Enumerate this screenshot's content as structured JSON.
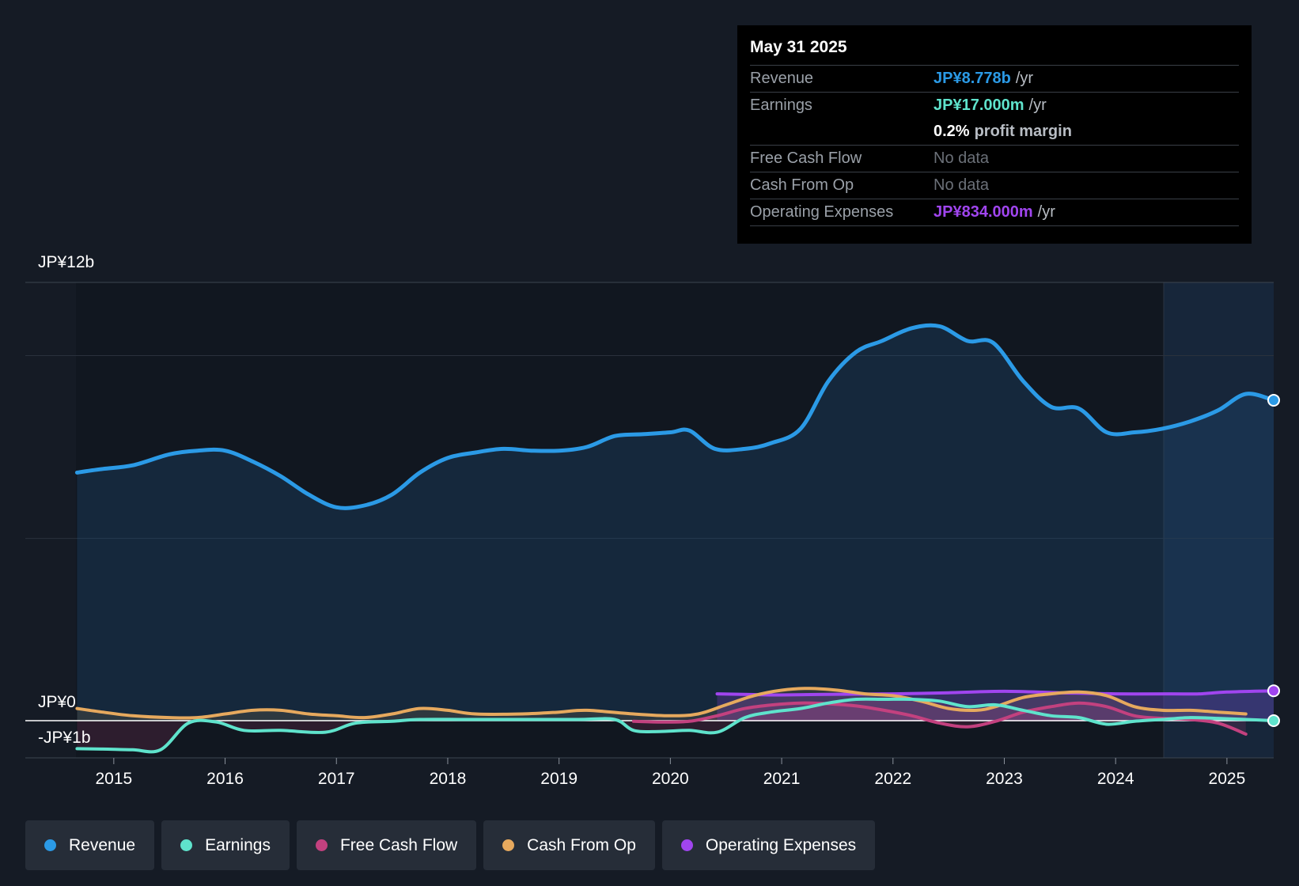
{
  "tooltip": {
    "date": "May 31 2025",
    "rows": {
      "revenue": {
        "label": "Revenue",
        "value": "JP¥8.778b",
        "unit": "/yr"
      },
      "earnings": {
        "label": "Earnings",
        "value": "JP¥17.000m",
        "unit": "/yr"
      },
      "margin": {
        "value": "0.2%",
        "unit": "profit margin"
      },
      "fcf": {
        "label": "Free Cash Flow",
        "value": "No data"
      },
      "cfo": {
        "label": "Cash From Op",
        "value": "No data"
      },
      "opex": {
        "label": "Operating Expenses",
        "value": "JP¥834.000m",
        "unit": "/yr"
      }
    }
  },
  "colors": {
    "revenue": "#2b9ae6",
    "earnings": "#5fe3cc",
    "fcf": "#c3417f",
    "cfo": "#e6a95e",
    "opex": "#a045ef"
  },
  "legend": [
    {
      "key": "revenue",
      "label": "Revenue"
    },
    {
      "key": "earnings",
      "label": "Earnings"
    },
    {
      "key": "fcf",
      "label": "Free Cash Flow"
    },
    {
      "key": "cfo",
      "label": "Cash From Op"
    },
    {
      "key": "opex",
      "label": "Operating Expenses"
    }
  ],
  "chart_data": {
    "type": "area",
    "unit": "JP¥ billions",
    "ylim": [
      -1,
      12
    ],
    "y_axis_labels": {
      "top": "JP¥12b",
      "zero": "JP¥0",
      "bottom": "-JP¥1b"
    },
    "x_range": [
      2014.66,
      2025.42
    ],
    "x_ticks": [
      "2015",
      "2016",
      "2017",
      "2018",
      "2019",
      "2020",
      "2021",
      "2022",
      "2023",
      "2024",
      "2025"
    ],
    "forecast_start": 2024.42,
    "series": [
      {
        "key": "revenue",
        "name": "Revenue",
        "points": [
          [
            2014.67,
            6.8
          ],
          [
            2014.9,
            6.9
          ],
          [
            2015.17,
            7.0
          ],
          [
            2015.5,
            7.3
          ],
          [
            2015.75,
            7.4
          ],
          [
            2016.0,
            7.4
          ],
          [
            2016.25,
            7.1
          ],
          [
            2016.5,
            6.7
          ],
          [
            2016.75,
            6.2
          ],
          [
            2017.0,
            5.85
          ],
          [
            2017.25,
            5.9
          ],
          [
            2017.5,
            6.2
          ],
          [
            2017.75,
            6.8
          ],
          [
            2018.0,
            7.2
          ],
          [
            2018.25,
            7.35
          ],
          [
            2018.5,
            7.45
          ],
          [
            2018.75,
            7.4
          ],
          [
            2019.0,
            7.4
          ],
          [
            2019.25,
            7.5
          ],
          [
            2019.5,
            7.8
          ],
          [
            2019.75,
            7.85
          ],
          [
            2020.0,
            7.9
          ],
          [
            2020.17,
            7.95
          ],
          [
            2020.4,
            7.45
          ],
          [
            2020.67,
            7.45
          ],
          [
            2020.9,
            7.6
          ],
          [
            2021.17,
            8.0
          ],
          [
            2021.42,
            9.3
          ],
          [
            2021.67,
            10.1
          ],
          [
            2021.9,
            10.4
          ],
          [
            2022.17,
            10.75
          ],
          [
            2022.42,
            10.8
          ],
          [
            2022.67,
            10.4
          ],
          [
            2022.9,
            10.35
          ],
          [
            2023.17,
            9.3
          ],
          [
            2023.42,
            8.6
          ],
          [
            2023.67,
            8.55
          ],
          [
            2023.92,
            7.9
          ],
          [
            2024.17,
            7.9
          ],
          [
            2024.42,
            8.0
          ],
          [
            2024.67,
            8.2
          ],
          [
            2024.92,
            8.5
          ],
          [
            2025.17,
            8.95
          ],
          [
            2025.42,
            8.778
          ]
        ]
      },
      {
        "key": "earnings",
        "name": "Earnings",
        "points": [
          [
            2014.67,
            -0.75
          ],
          [
            2014.9,
            -0.76
          ],
          [
            2015.17,
            -0.78
          ],
          [
            2015.42,
            -0.78
          ],
          [
            2015.67,
            -0.05
          ],
          [
            2015.92,
            -0.02
          ],
          [
            2016.17,
            -0.25
          ],
          [
            2016.5,
            -0.25
          ],
          [
            2016.9,
            -0.3
          ],
          [
            2017.17,
            -0.05
          ],
          [
            2017.5,
            0.0
          ],
          [
            2017.75,
            0.05
          ],
          [
            2018.17,
            0.05
          ],
          [
            2018.67,
            0.05
          ],
          [
            2019.17,
            0.05
          ],
          [
            2019.5,
            0.05
          ],
          [
            2019.67,
            -0.25
          ],
          [
            2019.9,
            -0.28
          ],
          [
            2020.17,
            -0.25
          ],
          [
            2020.42,
            -0.3
          ],
          [
            2020.67,
            0.1
          ],
          [
            2020.9,
            0.25
          ],
          [
            2021.17,
            0.35
          ],
          [
            2021.42,
            0.5
          ],
          [
            2021.67,
            0.6
          ],
          [
            2021.92,
            0.6
          ],
          [
            2022.17,
            0.6
          ],
          [
            2022.42,
            0.55
          ],
          [
            2022.67,
            0.4
          ],
          [
            2022.92,
            0.45
          ],
          [
            2023.17,
            0.3
          ],
          [
            2023.42,
            0.15
          ],
          [
            2023.67,
            0.1
          ],
          [
            2023.92,
            -0.08
          ],
          [
            2024.17,
            0.0
          ],
          [
            2024.42,
            0.05
          ],
          [
            2024.67,
            0.1
          ],
          [
            2024.92,
            0.08
          ],
          [
            2025.17,
            0.05
          ],
          [
            2025.42,
            0.017
          ]
        ]
      },
      {
        "key": "fcf",
        "name": "Free Cash Flow",
        "points": [
          [
            2019.67,
            0.0
          ],
          [
            2019.92,
            -0.02
          ],
          [
            2020.17,
            0.0
          ],
          [
            2020.42,
            0.15
          ],
          [
            2020.67,
            0.35
          ],
          [
            2020.92,
            0.45
          ],
          [
            2021.17,
            0.5
          ],
          [
            2021.42,
            0.48
          ],
          [
            2021.67,
            0.42
          ],
          [
            2021.92,
            0.3
          ],
          [
            2022.17,
            0.15
          ],
          [
            2022.42,
            -0.05
          ],
          [
            2022.67,
            -0.15
          ],
          [
            2022.92,
            0.0
          ],
          [
            2023.17,
            0.25
          ],
          [
            2023.42,
            0.4
          ],
          [
            2023.67,
            0.5
          ],
          [
            2023.92,
            0.4
          ],
          [
            2024.17,
            0.15
          ],
          [
            2024.42,
            0.08
          ],
          [
            2024.67,
            0.05
          ],
          [
            2024.92,
            -0.05
          ],
          [
            2025.17,
            -0.35
          ]
        ]
      },
      {
        "key": "cfo",
        "name": "Cash From Op",
        "points": [
          [
            2014.67,
            0.35
          ],
          [
            2014.9,
            0.25
          ],
          [
            2015.17,
            0.15
          ],
          [
            2015.5,
            0.1
          ],
          [
            2015.75,
            0.1
          ],
          [
            2016.0,
            0.2
          ],
          [
            2016.25,
            0.3
          ],
          [
            2016.5,
            0.3
          ],
          [
            2016.75,
            0.2
          ],
          [
            2017.0,
            0.15
          ],
          [
            2017.25,
            0.1
          ],
          [
            2017.5,
            0.2
          ],
          [
            2017.75,
            0.35
          ],
          [
            2018.0,
            0.3
          ],
          [
            2018.25,
            0.2
          ],
          [
            2018.67,
            0.2
          ],
          [
            2019.0,
            0.25
          ],
          [
            2019.25,
            0.3
          ],
          [
            2019.67,
            0.2
          ],
          [
            2020.0,
            0.15
          ],
          [
            2020.25,
            0.2
          ],
          [
            2020.5,
            0.45
          ],
          [
            2020.75,
            0.7
          ],
          [
            2021.0,
            0.85
          ],
          [
            2021.25,
            0.9
          ],
          [
            2021.5,
            0.85
          ],
          [
            2021.75,
            0.75
          ],
          [
            2022.0,
            0.7
          ],
          [
            2022.25,
            0.55
          ],
          [
            2022.5,
            0.35
          ],
          [
            2022.75,
            0.3
          ],
          [
            2022.92,
            0.4
          ],
          [
            2023.17,
            0.65
          ],
          [
            2023.42,
            0.75
          ],
          [
            2023.67,
            0.8
          ],
          [
            2023.92,
            0.7
          ],
          [
            2024.17,
            0.4
          ],
          [
            2024.42,
            0.3
          ],
          [
            2024.67,
            0.3
          ],
          [
            2024.92,
            0.25
          ],
          [
            2025.17,
            0.2
          ]
        ]
      },
      {
        "key": "opex",
        "name": "Operating Expenses",
        "points": [
          [
            2020.42,
            0.75
          ],
          [
            2020.75,
            0.73
          ],
          [
            2021.0,
            0.72
          ],
          [
            2021.5,
            0.74
          ],
          [
            2022.0,
            0.75
          ],
          [
            2022.5,
            0.78
          ],
          [
            2023.0,
            0.82
          ],
          [
            2023.5,
            0.78
          ],
          [
            2024.0,
            0.75
          ],
          [
            2024.5,
            0.75
          ],
          [
            2024.75,
            0.75
          ],
          [
            2025.0,
            0.8
          ],
          [
            2025.42,
            0.834
          ]
        ]
      }
    ]
  }
}
